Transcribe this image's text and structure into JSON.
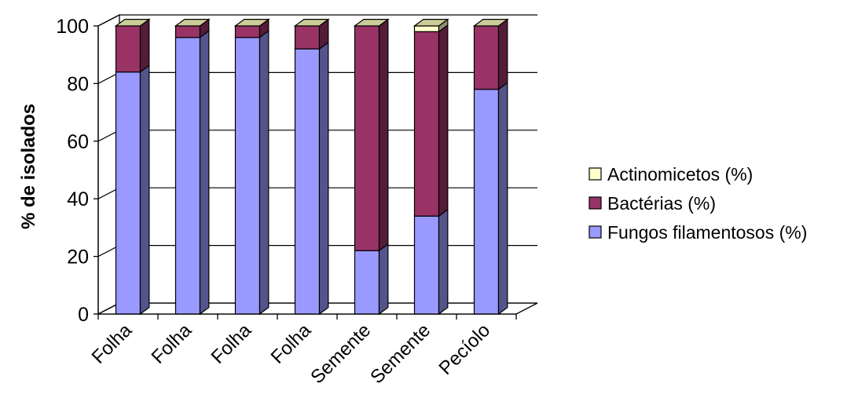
{
  "chart_data": {
    "type": "bar",
    "stacked": true,
    "three_d": true,
    "categories": [
      "Folha",
      "Folha",
      "Folha",
      "Folha",
      "Semente",
      "Semente",
      "Pecíolo"
    ],
    "series": [
      {
        "name": "Fungos filamentosos (%)",
        "color": "#9999ff",
        "values": [
          84,
          96,
          96,
          92,
          22,
          34,
          78
        ]
      },
      {
        "name": "Bactérias  (%)",
        "color": "#993366",
        "values": [
          16,
          4,
          4,
          8,
          78,
          64,
          22
        ]
      },
      {
        "name": "Actinomicetos  (%)",
        "color": "#ffffcc",
        "values": [
          0,
          0,
          0,
          0,
          0,
          2,
          0
        ]
      }
    ],
    "legend_order": [
      "Actinomicetos  (%)",
      "Bactérias  (%)",
      "Fungos filamentosos (%)"
    ],
    "ylabel": "% de isolados",
    "xlabel": "",
    "ylim": [
      0,
      100
    ],
    "yticks": [
      0,
      20,
      40,
      60,
      80,
      100
    ],
    "grid": true,
    "legend_position": "right"
  }
}
